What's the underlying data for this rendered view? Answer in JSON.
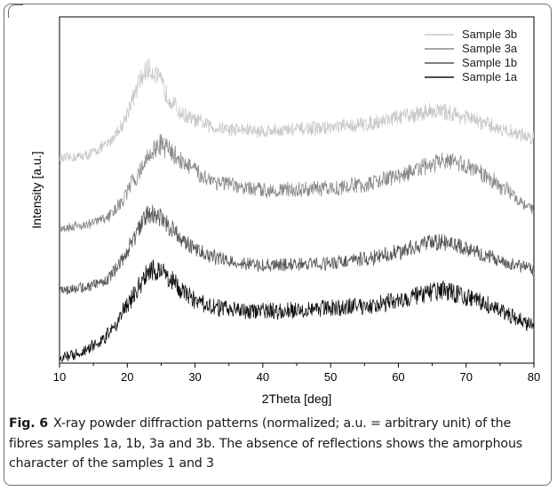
{
  "caption": {
    "label": "Fig. 6",
    "text": "X-ray powder diffraction patterns (normalized; a.u. = arbitrary unit) of the fibres samples 1a, 1b, 3a and 3b. The absence of reflections shows the amorphous character of the samples 1 and 3"
  },
  "colors": {
    "sample_3b": "#c8c8c8",
    "sample_3a": "#8a8a8a",
    "sample_1b": "#555555",
    "sample_1a": "#111111",
    "axis": "#000000"
  },
  "chart_data": {
    "type": "line",
    "title": "",
    "xlabel": "2Theta [deg]",
    "ylabel": "Intensity [a.u.]",
    "xlim": [
      10,
      80
    ],
    "ylim": [
      0,
      1
    ],
    "x_ticks": [
      "10",
      "20",
      "30",
      "40",
      "50",
      "60",
      "70",
      "80"
    ],
    "y_tick_labels": false,
    "grid": false,
    "legend": "top-right",
    "series": [
      {
        "name": "Sample 3b",
        "x": [
          10,
          14,
          17,
          19,
          21,
          22,
          23,
          24,
          25,
          26,
          28,
          30,
          33,
          36,
          40,
          45,
          50,
          55,
          60,
          63,
          65,
          67,
          70,
          73,
          76,
          80
        ],
        "y": [
          0.59,
          0.6,
          0.63,
          0.68,
          0.77,
          0.82,
          0.85,
          0.84,
          0.81,
          0.77,
          0.72,
          0.7,
          0.68,
          0.675,
          0.67,
          0.675,
          0.68,
          0.69,
          0.71,
          0.72,
          0.73,
          0.725,
          0.71,
          0.69,
          0.67,
          0.65
        ]
      },
      {
        "name": "Sample 3a",
        "x": [
          10,
          14,
          17,
          19,
          21,
          23,
          24,
          25,
          26,
          27,
          29,
          31,
          34,
          37,
          40,
          45,
          50,
          55,
          60,
          63,
          66,
          68,
          70,
          73,
          76,
          78,
          80
        ],
        "y": [
          0.39,
          0.4,
          0.42,
          0.46,
          0.53,
          0.59,
          0.62,
          0.63,
          0.62,
          0.6,
          0.57,
          0.54,
          0.52,
          0.505,
          0.5,
          0.5,
          0.505,
          0.515,
          0.54,
          0.56,
          0.58,
          0.58,
          0.57,
          0.54,
          0.5,
          0.47,
          0.44
        ]
      },
      {
        "name": "Sample 1b",
        "x": [
          10,
          14,
          17,
          19,
          21,
          22,
          23,
          24,
          25,
          27,
          29,
          32,
          35,
          38,
          40,
          45,
          50,
          55,
          60,
          63,
          66,
          68,
          70,
          73,
          76,
          80
        ],
        "y": [
          0.21,
          0.22,
          0.24,
          0.29,
          0.36,
          0.4,
          0.43,
          0.43,
          0.42,
          0.38,
          0.34,
          0.31,
          0.295,
          0.285,
          0.28,
          0.285,
          0.29,
          0.3,
          0.32,
          0.34,
          0.35,
          0.345,
          0.33,
          0.31,
          0.29,
          0.27
        ]
      },
      {
        "name": "Sample 1a",
        "x": [
          10,
          13,
          16,
          18,
          20,
          22,
          23,
          24,
          25,
          26,
          28,
          30,
          33,
          36,
          40,
          45,
          50,
          55,
          60,
          63,
          66,
          68,
          70,
          73,
          76,
          80
        ],
        "y": [
          0.015,
          0.03,
          0.06,
          0.1,
          0.17,
          0.23,
          0.26,
          0.27,
          0.265,
          0.25,
          0.21,
          0.18,
          0.16,
          0.155,
          0.15,
          0.155,
          0.16,
          0.165,
          0.18,
          0.195,
          0.21,
          0.205,
          0.19,
          0.17,
          0.14,
          0.11
        ]
      }
    ]
  }
}
